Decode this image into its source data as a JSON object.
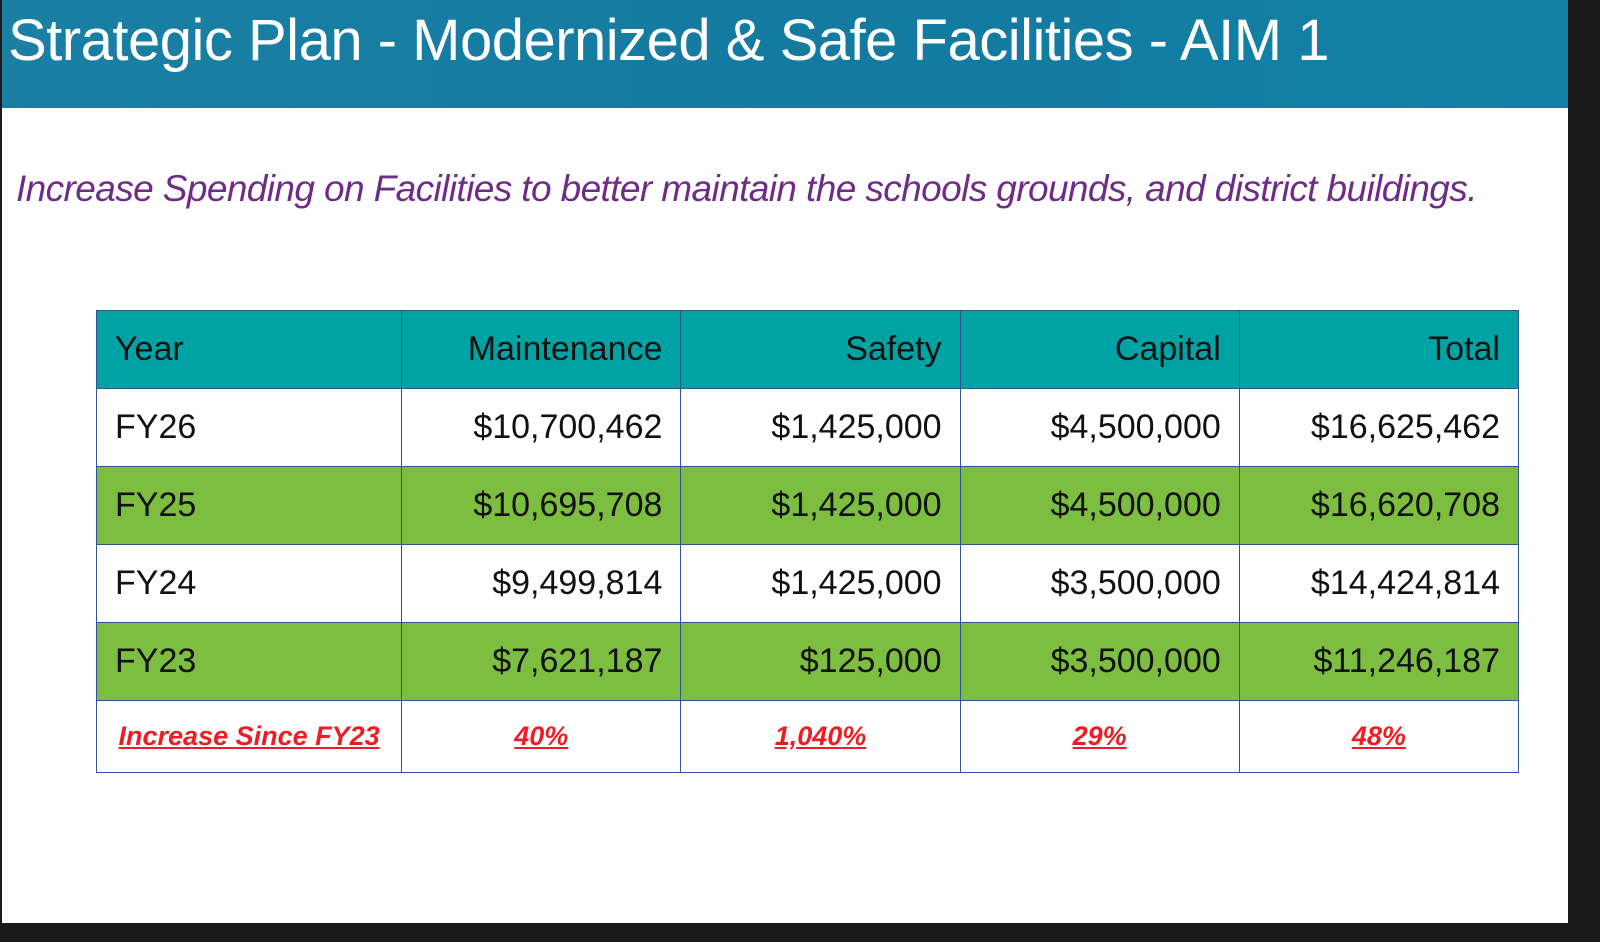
{
  "slide": {
    "title": "Strategic Plan - Modernized & Safe Facilities - AIM 1",
    "subtitle": "Increase Spending on Facilities to better maintain the schools grounds, and district buildings."
  },
  "table": {
    "headers": [
      "Year",
      "Maintenance",
      "Safety",
      "Capital",
      "Total"
    ],
    "rows": [
      {
        "year": "FY26",
        "maintenance": "$10,700,462",
        "safety": "$1,425,000",
        "capital": "$4,500,000",
        "total": "$16,625,462"
      },
      {
        "year": "FY25",
        "maintenance": "$10,695,708",
        "safety": "$1,425,000",
        "capital": "$4,500,000",
        "total": "$16,620,708"
      },
      {
        "year": "FY24",
        "maintenance": "$9,499,814",
        "safety": "$1,425,000",
        "capital": "$3,500,000",
        "total": "$14,424,814"
      },
      {
        "year": "FY23",
        "maintenance": "$7,621,187",
        "safety": "$125,000",
        "capital": "$3,500,000",
        "total": "$11,246,187"
      }
    ],
    "increase": {
      "label": "Increase Since FY23",
      "maintenance": "40%",
      "safety": "1,040%",
      "capital": "29%",
      "total": "48%"
    }
  },
  "colors": {
    "title_bar": "#137aa0",
    "header_fill": "#00a3a3",
    "alt_row_fill": "#7dbd3f",
    "subtitle_text": "#6f2c86",
    "increase_text": "#ee1c24",
    "border": "#2f5597"
  }
}
